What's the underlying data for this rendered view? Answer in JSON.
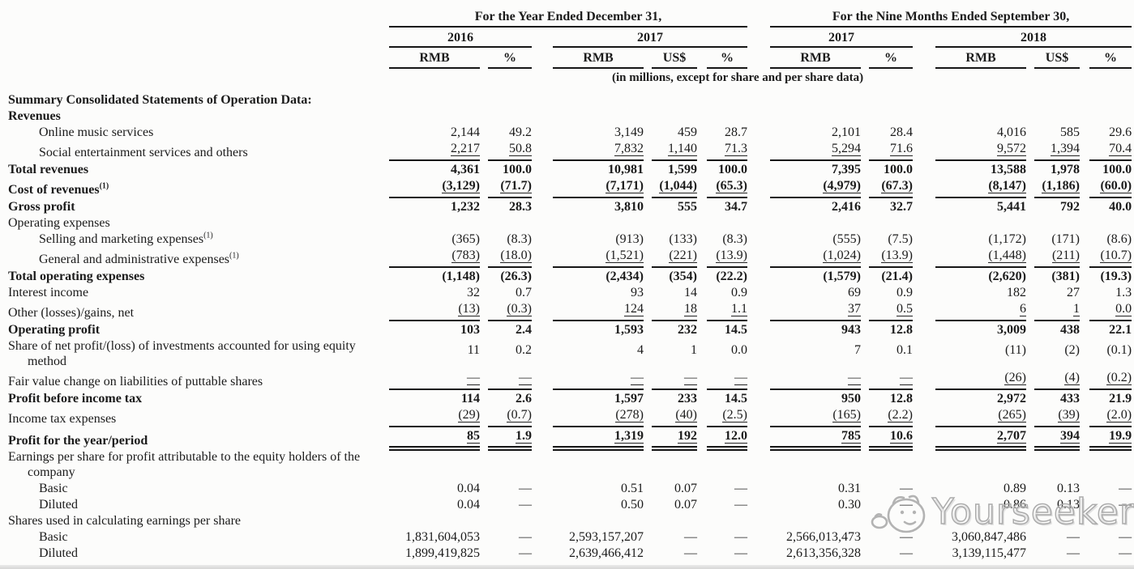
{
  "table": {
    "col_groups": [
      {
        "title": "For the Year Ended December 31,",
        "years": [
          {
            "label": "2016",
            "cols": [
              "RMB",
              "%"
            ]
          },
          {
            "label": "2017",
            "cols": [
              "RMB",
              "US$",
              "%"
            ]
          }
        ]
      },
      {
        "title": "For the Nine Months Ended September 30,",
        "years": [
          {
            "label": "2017",
            "cols": [
              "RMB",
              "%"
            ]
          },
          {
            "label": "2018",
            "cols": [
              "RMB",
              "US$",
              "%"
            ]
          }
        ]
      }
    ],
    "units_note": "(in millions, except for share and per share data)",
    "rows": [
      {
        "label": "Summary Consolidated Statements of Operation Data:",
        "bold": true,
        "indent": 0
      },
      {
        "label": "Revenues",
        "bold": true,
        "indent": 0
      },
      {
        "label": "Online music services",
        "indent": 1,
        "values": [
          "2,144",
          "49.2",
          "3,149",
          "459",
          "28.7",
          "2,101",
          "28.4",
          "4,016",
          "585",
          "29.6"
        ]
      },
      {
        "label": "Social entertainment services and others",
        "indent": 1,
        "rule": "single",
        "values": [
          "2,217",
          "50.8",
          "7,832",
          "1,140",
          "71.3",
          "5,294",
          "71.6",
          "9,572",
          "1,394",
          "70.4"
        ]
      },
      {
        "label": "Total revenues",
        "bold": true,
        "indent": 0,
        "values": [
          "4,361",
          "100.0",
          "10,981",
          "1,599",
          "100.0",
          "7,395",
          "100.0",
          "13,588",
          "1,978",
          "100.0"
        ]
      },
      {
        "label": "Cost of revenues",
        "sup": "(1)",
        "bold": true,
        "indent": 0,
        "rule": "single",
        "values": [
          "(3,129)",
          "(71.7)",
          "(7,171)",
          "(1,044)",
          "(65.3)",
          "(4,979)",
          "(67.3)",
          "(8,147)",
          "(1,186)",
          "(60.0)"
        ]
      },
      {
        "label": "Gross profit",
        "bold": true,
        "indent": 0,
        "values": [
          "1,232",
          "28.3",
          "3,810",
          "555",
          "34.7",
          "2,416",
          "32.7",
          "5,441",
          "792",
          "40.0"
        ]
      },
      {
        "label": "Operating expenses",
        "indent": 0
      },
      {
        "label": "Selling and marketing expenses",
        "sup": "(1)",
        "indent": 1,
        "values": [
          "(365)",
          "(8.3)",
          "(913)",
          "(133)",
          "(8.3)",
          "(555)",
          "(7.5)",
          "(1,172)",
          "(171)",
          "(8.6)"
        ]
      },
      {
        "label": "General and administrative expenses",
        "sup": "(1)",
        "indent": 1,
        "rule": "single",
        "values": [
          "(783)",
          "(18.0)",
          "(1,521)",
          "(221)",
          "(13.9)",
          "(1,024)",
          "(13.9)",
          "(1,448)",
          "(211)",
          "(10.7)"
        ]
      },
      {
        "label": "Total operating expenses",
        "bold": true,
        "indent": 0,
        "values": [
          "(1,148)",
          "(26.3)",
          "(2,434)",
          "(354)",
          "(22.2)",
          "(1,579)",
          "(21.4)",
          "(2,620)",
          "(381)",
          "(19.3)"
        ]
      },
      {
        "label": "Interest income",
        "indent": 0,
        "values": [
          "32",
          "0.7",
          "93",
          "14",
          "0.9",
          "69",
          "0.9",
          "182",
          "27",
          "1.3"
        ]
      },
      {
        "label": "Other (losses)/gains, net",
        "indent": 0,
        "rule": "single",
        "values": [
          "(13)",
          "(0.3)",
          "124",
          "18",
          "1.1",
          "37",
          "0.5",
          "6",
          "1",
          "0.0"
        ]
      },
      {
        "label": "Operating profit",
        "bold": true,
        "indent": 0,
        "values": [
          "103",
          "2.4",
          "1,593",
          "232",
          "14.5",
          "943",
          "12.8",
          "3,009",
          "438",
          "22.1"
        ]
      },
      {
        "label": "Share of net profit/(loss) of investments accounted for using equity",
        "label2": "method",
        "indent": 0,
        "values": [
          "11",
          "0.2",
          "4",
          "1",
          "0.0",
          "7",
          "0.1",
          "(11)",
          "(2)",
          "(0.1)"
        ]
      },
      {
        "label": "Fair value change on liabilities of puttable shares",
        "indent": 0,
        "rule": "single",
        "values": [
          "—",
          "—",
          "—",
          "—",
          "—",
          "—",
          "—",
          "(26)",
          "(4)",
          "(0.2)"
        ]
      },
      {
        "label": "Profit before income tax",
        "bold": true,
        "indent": 0,
        "values": [
          "114",
          "2.6",
          "1,597",
          "233",
          "14.5",
          "950",
          "12.8",
          "2,972",
          "433",
          "21.9"
        ]
      },
      {
        "label": "Income tax expenses",
        "indent": 0,
        "rule": "single",
        "values": [
          "(29)",
          "(0.7)",
          "(278)",
          "(40)",
          "(2.5)",
          "(165)",
          "(2.2)",
          "(265)",
          "(39)",
          "(2.0)"
        ]
      },
      {
        "label": "Profit for the year/period",
        "bold": true,
        "indent": 0,
        "rule": "double",
        "values": [
          "85",
          "1.9",
          "1,319",
          "192",
          "12.0",
          "785",
          "10.6",
          "2,707",
          "394",
          "19.9"
        ]
      },
      {
        "label": "Earnings per share for profit attributable to the equity holders of the",
        "label2": "company",
        "indent": 0
      },
      {
        "label": "Basic",
        "indent": 1,
        "values": [
          "0.04",
          "—",
          "0.51",
          "0.07",
          "—",
          "0.31",
          "—",
          "0.89",
          "0.13",
          "—"
        ]
      },
      {
        "label": "Diluted",
        "indent": 1,
        "values": [
          "0.04",
          "—",
          "0.50",
          "0.07",
          "—",
          "0.30",
          "—",
          "0.86",
          "0.13",
          "—"
        ]
      },
      {
        "label": "Shares used in calculating earnings per share",
        "indent": 0
      },
      {
        "label": "Basic",
        "indent": 1,
        "values": [
          "1,831,604,053",
          "—",
          "2,593,157,207",
          "—",
          "—",
          "2,566,013,473",
          "—",
          "3,060,847,486",
          "—",
          "—"
        ]
      },
      {
        "label": "Diluted",
        "indent": 1,
        "values": [
          "1,899,419,825",
          "—",
          "2,639,466,412",
          "—",
          "—",
          "2,613,356,328",
          "—",
          "3,139,115,477",
          "—",
          "—"
        ]
      }
    ]
  },
  "watermark": {
    "text": "Yourseeker",
    "color": "#ababab"
  }
}
